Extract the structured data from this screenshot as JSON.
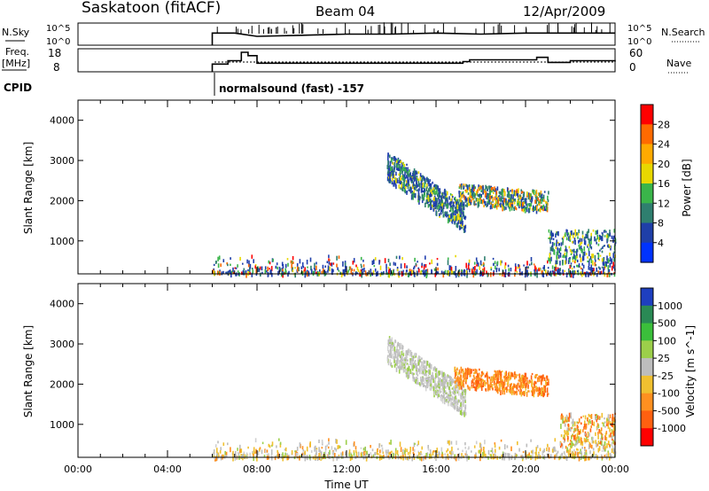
{
  "header": {
    "station": "Saskatoon (fitACF)",
    "beam": "Beam 04",
    "date": "12/Apr/2009"
  },
  "aux": {
    "nsky_label": "N.Sky",
    "nsky_ticks": [
      "10^5",
      "10^0"
    ],
    "nsearch_label": "N.Search",
    "nsearch_ticks": [
      "10^5",
      "10^0"
    ],
    "freq_label": "Freq.",
    "freq_unit": "[MHz]",
    "freq_ticks": [
      "18",
      "8"
    ],
    "nave_label": "Nave",
    "nave_ticks": [
      "60",
      "0"
    ],
    "cpid_label": "CPID",
    "cpid_text": "normalsound (fast) -157"
  },
  "chart_data": [
    {
      "type": "heatmap",
      "title": "",
      "xlabel": "",
      "ylabel": "Slant Range [km]",
      "x_range_hours": [
        0,
        24
      ],
      "ylim": [
        180,
        4500
      ],
      "y_ticks": [
        "1000",
        "2000",
        "3000",
        "4000"
      ],
      "colorbar": {
        "label": "Power [dB]",
        "ticks": [
          "28",
          "24",
          "20",
          "16",
          "12",
          "8",
          "4"
        ],
        "colors": [
          "#ff0000",
          "#ff6a00",
          "#ffaa00",
          "#e8d800",
          "#3ab54a",
          "#2f7f6f",
          "#1f3fa8",
          "#0033ff"
        ]
      },
      "echo_regions": [
        {
          "t0": 6.0,
          "t1": 24.0,
          "r0": 200,
          "r1": 700,
          "value": "low power"
        },
        {
          "t0": 13.8,
          "t1": 17.3,
          "r0": 1200,
          "r1": 3400,
          "value": "8-20 dB"
        },
        {
          "t0": 17.0,
          "t1": 21.0,
          "r0": 1800,
          "r1": 2600,
          "value": "8-24 dB"
        },
        {
          "t0": 21.0,
          "t1": 24.0,
          "r0": 500,
          "r1": 1300,
          "value": "4-16 dB"
        }
      ]
    },
    {
      "type": "heatmap",
      "title": "",
      "xlabel": "Time UT",
      "ylabel": "Slant Range [km]",
      "x_range_hours": [
        0,
        24
      ],
      "x_ticks": [
        "00:00",
        "04:00",
        "08:00",
        "12:00",
        "16:00",
        "20:00",
        "00:00"
      ],
      "ylim": [
        180,
        4500
      ],
      "y_ticks": [
        "1000",
        "2000",
        "3000",
        "4000"
      ],
      "colorbar": {
        "label": "Velocity [m s^-1]",
        "ticks": [
          "1000",
          "500",
          "100",
          "25",
          "-25",
          "-100",
          "-500",
          "-1000"
        ],
        "colors": [
          "#1e3fbf",
          "#2a8a55",
          "#3bbf3b",
          "#9ccf4a",
          "#bdbdbd",
          "#f0c030",
          "#ff9020",
          "#ff6010",
          "#ff0000"
        ]
      },
      "echo_regions": [
        {
          "t0": 6.0,
          "t1": 24.0,
          "r0": 200,
          "r1": 700,
          "value": "ground scatter / low velocity"
        },
        {
          "t0": 13.8,
          "t1": 17.3,
          "r0": 1200,
          "r1": 3400,
          "value": "ground scatter"
        },
        {
          "t0": 16.8,
          "t1": 21.0,
          "r0": 1800,
          "r1": 2600,
          "value": "-100 to -500 m/s"
        },
        {
          "t0": 21.5,
          "t1": 24.0,
          "r0": 500,
          "r1": 1300,
          "value": "-100 to -500 m/s"
        }
      ]
    }
  ],
  "nsky_series": {
    "t": [
      6.0,
      7.0,
      8.0,
      10.0,
      12.0,
      14.0,
      16.0,
      18.0,
      20.0,
      22.0,
      24.0
    ],
    "level": [
      0.55,
      0.55,
      0.4,
      0.45,
      0.5,
      0.5,
      0.55,
      0.5,
      0.55,
      0.55,
      0.55
    ]
  },
  "freq_series": {
    "t": [
      6.0,
      6.7,
      7.3,
      7.6,
      8.0,
      12.0,
      16.0,
      17.2,
      17.5,
      20.5,
      21.0,
      22.0,
      24.0
    ],
    "mhz": [
      11.0,
      13.0,
      18.0,
      16.0,
      11.5,
      11.5,
      11.5,
      12.5,
      13.5,
      15.0,
      12.0,
      13.0,
      12.5
    ]
  }
}
